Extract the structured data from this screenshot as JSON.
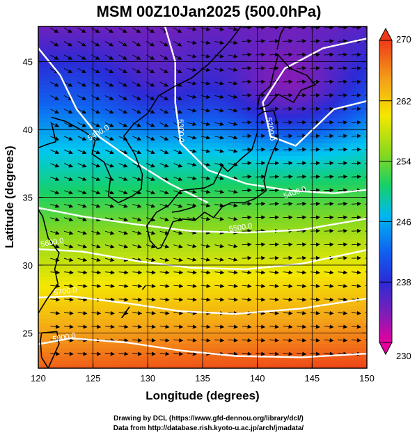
{
  "chart_data": {
    "type": "heatmap",
    "title": "MSM 00Z10Jan2025 (500.0hPa)",
    "xlabel": "Longitude (degrees)",
    "ylabel": "Latitude  (degrees)",
    "xlim": [
      120,
      150
    ],
    "ylim": [
      22.4,
      47.6
    ],
    "xticks": [
      120,
      125,
      130,
      135,
      140,
      145,
      150
    ],
    "yticks": [
      25,
      30,
      35,
      40,
      45
    ],
    "colorbar": {
      "min": 230,
      "max": 270,
      "ticks": [
        230,
        238,
        246,
        254,
        262,
        270
      ],
      "colors": [
        "#e6009e",
        "#7a1fb8",
        "#2b2bd6",
        "#1060f0",
        "#00c8f0",
        "#16d068",
        "#84d820",
        "#f4e800",
        "#f4a018",
        "#ee3a18"
      ],
      "extend": "both"
    },
    "contour_labels": [
      {
        "text": "5400.0",
        "lon": 125.6,
        "lat": 39.6,
        "angle": -30
      },
      {
        "text": "5300.0",
        "lon": 132.8,
        "lat": 39.9,
        "angle": 88
      },
      {
        "text": "5200.0",
        "lon": 141.0,
        "lat": 40.0,
        "angle": 80
      },
      {
        "text": "5400.0",
        "lon": 143.5,
        "lat": 35.2,
        "angle": -20
      },
      {
        "text": "5500.0",
        "lon": 138.5,
        "lat": 32.6,
        "angle": -8
      },
      {
        "text": "5600.0",
        "lon": 121.3,
        "lat": 31.5,
        "angle": -10
      },
      {
        "text": "5700.0",
        "lon": 122.5,
        "lat": 27.9,
        "angle": -8
      },
      {
        "text": "5800.0",
        "lon": 122.4,
        "lat": 24.5,
        "angle": -10
      }
    ]
  },
  "credits": {
    "line1": "Drawing by DCL (https://www.gfd-dennou.org/library/dcl/)",
    "line2": "Data from http://database.rish.kyoto-u.ac.jp/arch/jmadata/"
  }
}
